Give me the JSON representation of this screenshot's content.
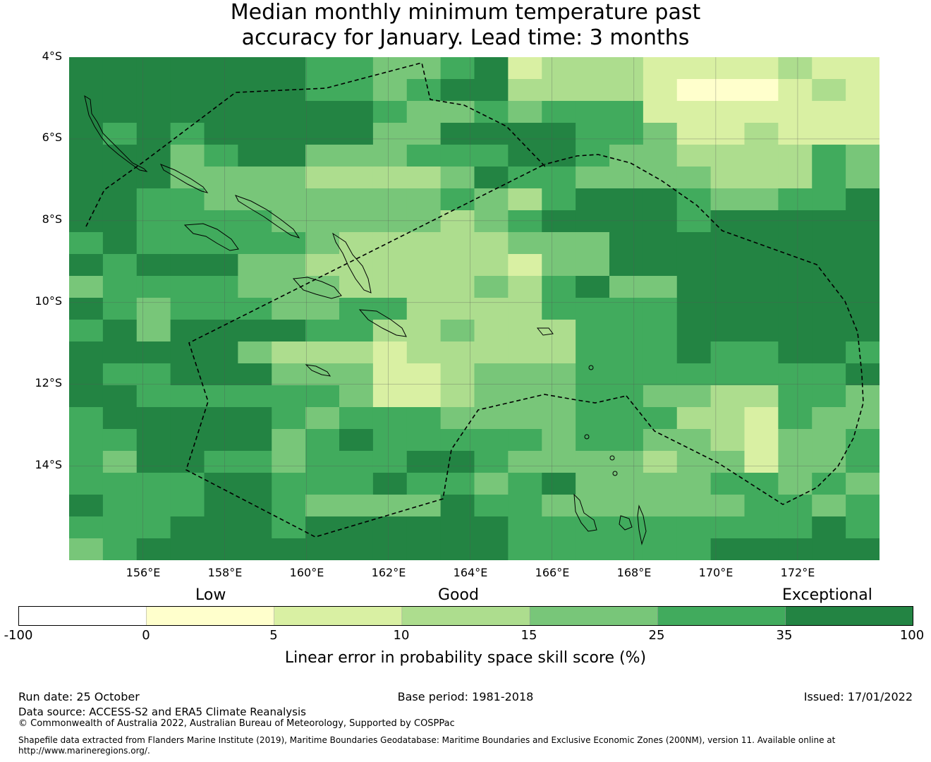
{
  "title": {
    "line1": "Median monthly minimum temperature past",
    "line2": "accuracy for January. Lead time: 3 months"
  },
  "map": {
    "lat_labels": [
      "4°S",
      "6°S",
      "8°S",
      "10°S",
      "12°S",
      "14°S"
    ],
    "lon_labels": [
      "156°E",
      "158°E",
      "160°E",
      "162°E",
      "164°E",
      "166°E",
      "168°E",
      "170°E",
      "172°E"
    ],
    "extent_lon": [
      154.2,
      174.0
    ],
    "extent_lat": [
      -4.0,
      -16.3
    ],
    "grid_cell_deg": 0.83,
    "grid_columns": 24,
    "grid_rows": 23,
    "class_colors": [
      "#ffffcc",
      "#d9f0a3",
      "#addd8e",
      "#78c679",
      "#41ab5d",
      "#238443"
    ],
    "cells": [
      "555555544334512221111211",
      "555555544345522221000121",
      "555555555433434441111111",
      "545455555335555443112111",
      "555345533344455433222243",
      "555333322223544333322243",
      "554433333334324555433445",
      "554444333332345555455555",
      "454444432222233355555555",
      "545553322222213355555555",
      "344443332222324533555555",
      "543444334422224444555555",
      "453555544223222444555555",
      "555553222122222444544554",
      "544555333112333444444445",
      "554444443112333443322443",
      "455555434443333444221433",
      "445555345444443443321334",
      "435544344455433332331334",
      "444455444544345333344343",
      "544455433335443333334434",
      "444555455555544444444454",
      "345555555555544444455555"
    ],
    "boundary_label": "Maritime boundary"
  },
  "legend": {
    "categories": [
      "Low",
      "Good",
      "Exceptional"
    ],
    "bins": [
      {
        "from": -100,
        "to": 0,
        "color": "#ffffff"
      },
      {
        "from": 0,
        "to": 5,
        "color": "#ffffcc"
      },
      {
        "from": 5,
        "to": 10,
        "color": "#d9f0a3"
      },
      {
        "from": 10,
        "to": 15,
        "color": "#addd8e"
      },
      {
        "from": 15,
        "to": 25,
        "color": "#78c679"
      },
      {
        "from": 25,
        "to": 35,
        "color": "#41ab5d"
      },
      {
        "from": 35,
        "to": 100,
        "color": "#238443"
      }
    ],
    "ticks": [
      "-100",
      "0",
      "5",
      "10",
      "15",
      "25",
      "35",
      "100"
    ],
    "title": "Linear error in probability space skill score (%)"
  },
  "footer": {
    "run_date": "Run date: 25 October",
    "base_period": "Base period: 1981-2018",
    "issued": "Issued: 17/01/2022",
    "data_source": "Data source: ACCESS-S2 and ERA5 Climate Reanalysis",
    "copyright": "© Commonwealth of Australia 2022, Australian Bureau of Meteorology, Supported by COSPPac",
    "shapefile_line1": "Shapefile data extracted from Flanders Marine Institute (2019), Maritime Boundaries Geodatabase: Maritime Boundaries and Exclusive Economic Zones (200NM), version 11. Available online at",
    "shapefile_line2": "http://www.marineregions.org/."
  }
}
